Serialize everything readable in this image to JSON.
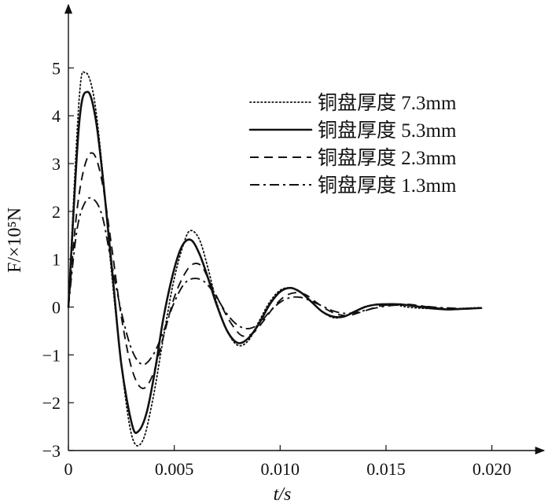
{
  "chart_data": {
    "type": "line",
    "xlabel": "t/s",
    "ylabel": "F/×10⁵N",
    "xlim": [
      0,
      0.0215
    ],
    "ylim": [
      -3,
      5.5
    ],
    "x_ticks": [
      0,
      0.005,
      0.01,
      0.015,
      0.02
    ],
    "x_tick_labels": [
      "0",
      "0.005",
      "0.010",
      "0.015",
      "0.020"
    ],
    "y_ticks": [
      -3,
      -2,
      -1,
      0,
      1,
      2,
      3,
      4,
      5
    ],
    "y_tick_labels": [
      "−3",
      "−2",
      "−1",
      "0",
      "1",
      "2",
      "3",
      "4",
      "5"
    ],
    "grid": false,
    "legend_position": "top-right",
    "series": [
      {
        "name": "铜盘厚度 7.3mm",
        "style": "dotted",
        "x": [
          0,
          0.0005,
          0.0008,
          0.0012,
          0.0016,
          0.002,
          0.0025,
          0.003,
          0.0035,
          0.004,
          0.0045,
          0.005,
          0.0055,
          0.0058,
          0.0062,
          0.0066,
          0.007,
          0.0075,
          0.008,
          0.0085,
          0.009,
          0.0095,
          0.01,
          0.0105,
          0.011,
          0.0115,
          0.012,
          0.0125,
          0.013,
          0.0135,
          0.014,
          0.0145,
          0.015,
          0.0155,
          0.016,
          0.0165,
          0.017,
          0.0175,
          0.018,
          0.0185,
          0.019,
          0.0195
        ],
        "values": [
          0,
          4.3,
          4.9,
          4.4,
          2.9,
          0.9,
          -1.2,
          -2.7,
          -2.8,
          -1.9,
          -0.6,
          0.6,
          1.4,
          1.6,
          1.4,
          0.8,
          0.1,
          -0.5,
          -0.8,
          -0.7,
          -0.3,
          0.1,
          0.35,
          0.4,
          0.3,
          0.1,
          -0.1,
          -0.22,
          -0.2,
          -0.1,
          0.0,
          0.05,
          0.05,
          0.04,
          0.0,
          -0.02,
          -0.03,
          -0.04,
          -0.04,
          -0.03,
          -0.02,
          -0.01
        ]
      },
      {
        "name": "铜盘厚度 5.3mm",
        "style": "solid",
        "x": [
          0,
          0.0005,
          0.0009,
          0.0013,
          0.0017,
          0.0021,
          0.0025,
          0.003,
          0.0033,
          0.0037,
          0.0041,
          0.0045,
          0.005,
          0.0054,
          0.0058,
          0.0062,
          0.0066,
          0.007,
          0.0075,
          0.008,
          0.0085,
          0.009,
          0.0095,
          0.01,
          0.0105,
          0.011,
          0.0115,
          0.012,
          0.0125,
          0.013,
          0.0135,
          0.014,
          0.0145,
          0.015,
          0.0155,
          0.016,
          0.0165,
          0.017,
          0.0175,
          0.018,
          0.0185,
          0.019,
          0.0195
        ],
        "values": [
          0,
          3.8,
          4.5,
          3.9,
          2.4,
          0.6,
          -1.2,
          -2.45,
          -2.6,
          -2.2,
          -1.3,
          -0.2,
          0.8,
          1.3,
          1.4,
          1.1,
          0.6,
          0.05,
          -0.5,
          -0.75,
          -0.65,
          -0.35,
          0.05,
          0.32,
          0.4,
          0.3,
          0.1,
          -0.1,
          -0.2,
          -0.2,
          -0.1,
          0.0,
          0.05,
          0.06,
          0.06,
          0.04,
          0.01,
          -0.02,
          -0.04,
          -0.05,
          -0.04,
          -0.03,
          -0.02
        ]
      },
      {
        "name": "铜盘厚度 2.3mm",
        "style": "dashed",
        "x": [
          0,
          0.0004,
          0.0008,
          0.0012,
          0.0016,
          0.002,
          0.0025,
          0.003,
          0.0035,
          0.004,
          0.0045,
          0.005,
          0.0055,
          0.0059,
          0.0063,
          0.0067,
          0.0072,
          0.0077,
          0.0082,
          0.0087,
          0.0092,
          0.0097,
          0.0102,
          0.0107,
          0.0112,
          0.0117,
          0.0122,
          0.0127,
          0.0132,
          0.0137,
          0.0142,
          0.0147,
          0.0152,
          0.0157,
          0.0162,
          0.0167,
          0.0172,
          0.0177,
          0.0182,
          0.0187,
          0.0192,
          0.0195
        ],
        "values": [
          0,
          2.0,
          3.0,
          3.2,
          2.6,
          1.4,
          -0.2,
          -1.3,
          -1.7,
          -1.4,
          -0.6,
          0.2,
          0.7,
          0.9,
          0.85,
          0.5,
          0.05,
          -0.35,
          -0.6,
          -0.55,
          -0.3,
          0.0,
          0.22,
          0.3,
          0.26,
          0.1,
          -0.05,
          -0.15,
          -0.18,
          -0.12,
          -0.05,
          0.02,
          0.05,
          0.06,
          0.05,
          0.02,
          -0.01,
          -0.03,
          -0.04,
          -0.04,
          -0.03,
          -0.02
        ]
      },
      {
        "name": "铜盘厚度 1.3mm",
        "style": "dashdot",
        "x": [
          0,
          0.0004,
          0.0008,
          0.0012,
          0.0016,
          0.002,
          0.0025,
          0.003,
          0.0035,
          0.004,
          0.0045,
          0.005,
          0.0055,
          0.006,
          0.0065,
          0.007,
          0.0075,
          0.008,
          0.0085,
          0.009,
          0.0095,
          0.01,
          0.0105,
          0.011,
          0.0115,
          0.012,
          0.0125,
          0.013,
          0.0135,
          0.014,
          0.0145,
          0.015,
          0.0155,
          0.016,
          0.0165,
          0.017,
          0.0175,
          0.018,
          0.0185,
          0.019,
          0.0195
        ],
        "values": [
          0,
          1.6,
          2.2,
          2.25,
          1.9,
          1.0,
          -0.1,
          -0.9,
          -1.2,
          -1.0,
          -0.5,
          0.1,
          0.5,
          0.6,
          0.5,
          0.2,
          -0.15,
          -0.38,
          -0.45,
          -0.35,
          -0.1,
          0.1,
          0.2,
          0.2,
          0.12,
          0.02,
          -0.08,
          -0.13,
          -0.12,
          -0.07,
          -0.02,
          0.02,
          0.04,
          0.04,
          0.03,
          0.01,
          -0.01,
          -0.02,
          -0.03,
          -0.03,
          -0.02
        ]
      }
    ]
  }
}
